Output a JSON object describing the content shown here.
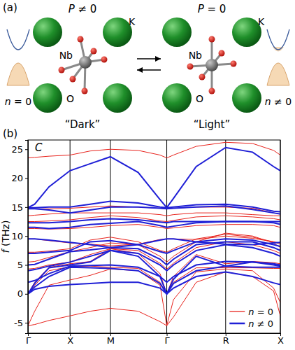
{
  "diagram": {
    "label": "(a)",
    "states": [
      {
        "polarization": "P ≠ 0",
        "title": "“Dark”",
        "carriers": "n = 0",
        "labels": [
          "K",
          "Nb",
          "O"
        ]
      },
      {
        "polarization": "P = 0",
        "title": "“Light”",
        "carriers": "n ≠ 0",
        "labels": [
          "K",
          "Nb",
          "O"
        ]
      }
    ]
  },
  "chart_data": {
    "type": "line",
    "annotations": [
      "(b)",
      "C"
    ],
    "y_label": "f (THz)",
    "x": [
      0,
      0.08,
      0.25,
      0.5,
      0.74,
      0.98,
      1.31,
      1.57,
      1.65,
      1.73,
      2.0,
      2.35,
      2.67,
      2.92,
      3.0
    ],
    "xlim": [
      0,
      3.0
    ],
    "xticks": [
      {
        "value": 0,
        "label": "Γ"
      },
      {
        "value": 0.5,
        "label": "X"
      },
      {
        "value": 0.98,
        "label": "M"
      },
      {
        "value": 1.65,
        "label": "Γ"
      },
      {
        "value": 2.35,
        "label": "R"
      },
      {
        "value": 3.0,
        "label": "X"
      }
    ],
    "ylim": [
      -6.8,
      26.6
    ],
    "yticks": [
      -5,
      0,
      5,
      10,
      15,
      20,
      25
    ],
    "grid": "x",
    "legend": "lower right",
    "series": [
      {
        "name": "n = 0",
        "color": "#e8221c",
        "line_style": "solid",
        "values": [
          [
            -5.5,
            -5.3,
            -4.6,
            -3.8,
            -3.0,
            -2.5,
            -3.0,
            -4.8,
            -5.5,
            -4.0,
            2.0,
            3.8,
            3.0,
            0.5,
            -3.8
          ],
          [
            -5.5,
            -3.0,
            1.5,
            2.4,
            3.2,
            4.3,
            4.0,
            1.5,
            -5.5,
            -1.0,
            3.8,
            4.3,
            4.0,
            1.0,
            -1.5
          ],
          [
            0,
            1.5,
            4.0,
            4.7,
            4.8,
            4.6,
            4.4,
            2.0,
            0,
            2.0,
            4.5,
            4.5,
            4.5,
            4.4,
            4.4
          ],
          [
            0,
            2.0,
            4.6,
            5.2,
            5.6,
            7.8,
            7.0,
            3.5,
            0,
            3.0,
            6.8,
            5.2,
            5.6,
            5.4,
            5.2
          ],
          [
            4.3,
            4.4,
            5.0,
            5.5,
            6.8,
            7.8,
            7.5,
            5.3,
            4.3,
            5.3,
            8.0,
            9.0,
            8.5,
            7.5,
            7.0
          ],
          [
            5.5,
            5.6,
            6.3,
            7.3,
            8.0,
            8.8,
            8.5,
            6.5,
            5.5,
            6.5,
            9.0,
            10.5,
            10.0,
            8.8,
            8.0
          ],
          [
            7.2,
            7.2,
            7.4,
            7.8,
            9.3,
            9.8,
            9.0,
            7.5,
            7.2,
            7.8,
            9.5,
            10.3,
            9.8,
            9.0,
            8.6
          ],
          [
            9.5,
            9.5,
            9.2,
            8.8,
            8.6,
            8.3,
            8.6,
            9.4,
            9.5,
            9.5,
            9.4,
            10.0,
            9.6,
            9.0,
            8.8
          ],
          [
            11.3,
            11.3,
            11.2,
            11.3,
            11.5,
            11.8,
            12.0,
            11.5,
            11.3,
            11.4,
            11.8,
            12.0,
            12.0,
            11.8,
            11.5
          ],
          [
            12.5,
            12.5,
            12.6,
            12.8,
            13.2,
            13.5,
            13.2,
            12.6,
            12.5,
            12.7,
            13.3,
            13.5,
            13.3,
            13.0,
            12.8
          ],
          [
            13.5,
            13.6,
            13.8,
            14.0,
            14.0,
            14.0,
            14.0,
            13.7,
            13.5,
            13.7,
            14.0,
            14.0,
            13.7,
            13.5,
            13.5
          ],
          [
            14.7,
            14.7,
            14.7,
            14.8,
            15.0,
            15.2,
            15.0,
            14.8,
            14.7,
            14.8,
            15.0,
            15.0,
            14.8,
            14.0,
            13.8
          ],
          [
            23.5,
            23.6,
            23.8,
            24.0,
            24.7,
            25.0,
            24.8,
            24.0,
            23.5,
            24.0,
            25.5,
            26.2,
            26.0,
            24.8,
            24.0
          ]
        ]
      },
      {
        "name": "n ≠ 0",
        "color": "#1f1fd6",
        "line_style": "solid",
        "values": [
          [
            0,
            0.8,
            1.3,
            1.6,
            1.8,
            2.0,
            2.0,
            1.0,
            0,
            1.0,
            3.0,
            3.8,
            3.0,
            1.9,
            1.6
          ],
          [
            0,
            1.2,
            3.0,
            4.6,
            4.5,
            4.4,
            4.0,
            1.8,
            0,
            1.8,
            4.0,
            4.8,
            4.6,
            4.6,
            4.6
          ],
          [
            0,
            1.8,
            4.5,
            5.0,
            5.5,
            7.5,
            6.5,
            3.0,
            0,
            2.5,
            6.5,
            4.8,
            5.5,
            5.2,
            5.0
          ],
          [
            2.0,
            2.3,
            3.5,
            4.8,
            4.9,
            5.0,
            4.6,
            3.0,
            2.0,
            3.0,
            5.0,
            5.6,
            5.5,
            5.0,
            4.8
          ],
          [
            4.0,
            4.2,
            4.8,
            5.5,
            6.5,
            7.5,
            7.0,
            5.0,
            4.0,
            5.0,
            7.5,
            8.5,
            8.0,
            7.0,
            6.5
          ],
          [
            5.0,
            5.1,
            6.0,
            7.3,
            7.6,
            8.0,
            7.8,
            6.0,
            5.0,
            6.0,
            8.5,
            9.0,
            9.0,
            8.0,
            7.5
          ],
          [
            7.0,
            7.0,
            7.2,
            7.5,
            9.0,
            9.2,
            8.5,
            7.3,
            7.0,
            7.5,
            9.0,
            9.5,
            9.3,
            8.5,
            8.2
          ],
          [
            9.5,
            9.5,
            9.3,
            8.9,
            8.5,
            8.0,
            8.5,
            9.3,
            9.5,
            9.5,
            9.0,
            8.6,
            8.5,
            8.8,
            8.9
          ],
          [
            11.5,
            11.5,
            11.3,
            11.5,
            12.0,
            12.2,
            12.5,
            11.8,
            11.5,
            11.7,
            12.3,
            12.5,
            12.5,
            12.3,
            12.0
          ],
          [
            12.3,
            12.3,
            12.3,
            12.5,
            12.8,
            13.0,
            12.8,
            12.4,
            12.3,
            12.5,
            12.5,
            12.5,
            12.5,
            12.5,
            12.5
          ],
          [
            14.7,
            14.7,
            14.5,
            14.0,
            14.5,
            15.0,
            15.0,
            14.8,
            14.7,
            14.8,
            15.0,
            15.2,
            14.6,
            14.0,
            13.8
          ],
          [
            14.9,
            14.9,
            15.0,
            15.0,
            15.5,
            16.0,
            15.7,
            15.0,
            14.9,
            15.0,
            15.4,
            15.5,
            15.0,
            14.3,
            14.2
          ],
          [
            14.9,
            15.5,
            18.5,
            21.3,
            22.5,
            23.7,
            21.0,
            16.3,
            14.9,
            16.5,
            22.0,
            25.3,
            24.5,
            22.0,
            21.3
          ]
        ]
      }
    ]
  }
}
